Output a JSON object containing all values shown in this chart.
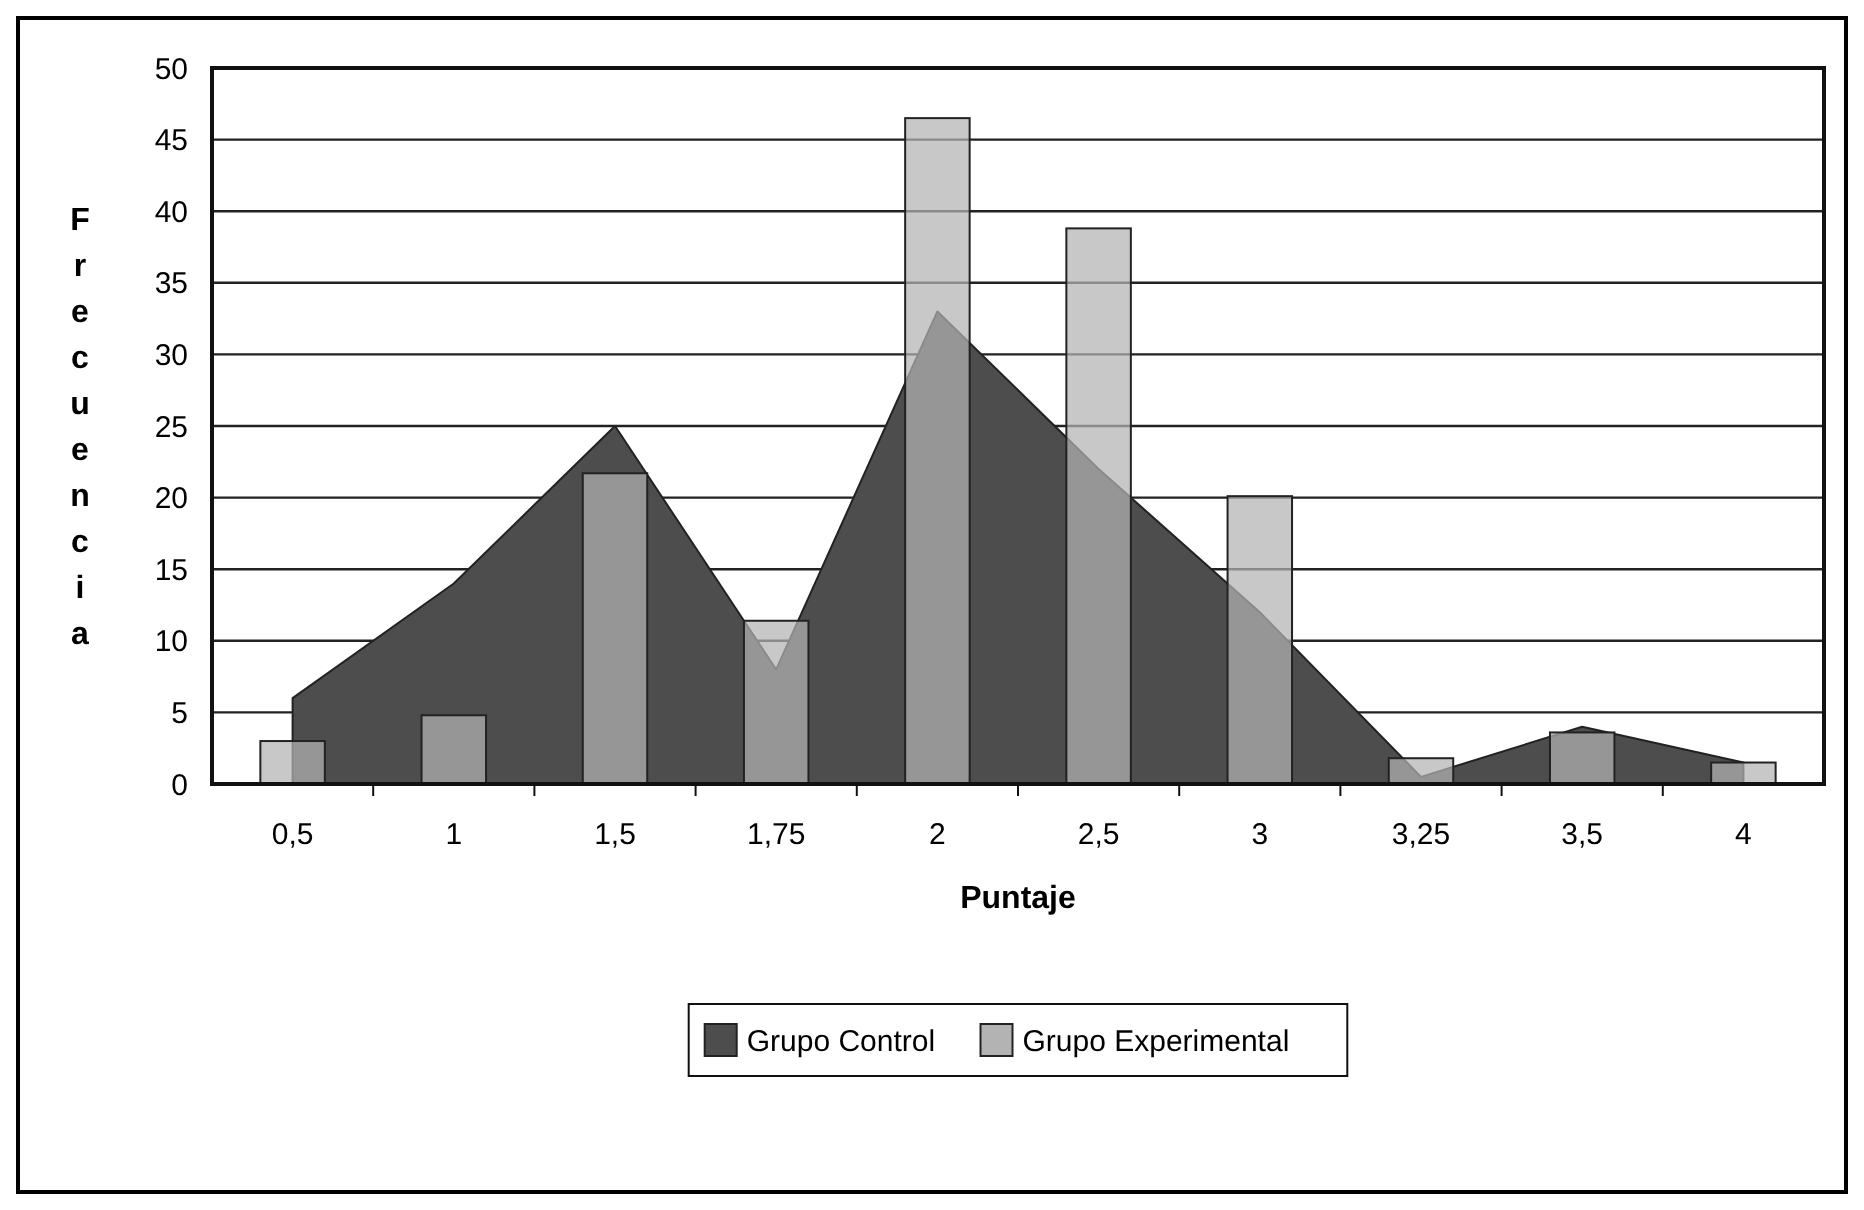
{
  "chart_data": {
    "type": "bar",
    "xlabel": "Puntaje",
    "ylabel": "Frecuencia",
    "categories": [
      "0,5",
      "1",
      "1,5",
      "1,75",
      "2",
      "2,5",
      "3",
      "3,25",
      "3,5",
      "4"
    ],
    "series": [
      {
        "name": "Grupo Control",
        "type": "area",
        "color": "#4d4d4d",
        "values": [
          6,
          14,
          25,
          8,
          33,
          22,
          12,
          0.5,
          4,
          1.5
        ]
      },
      {
        "name": "Grupo Experimental",
        "color": "#b3b3b3",
        "values": [
          3,
          4.8,
          21.7,
          11.4,
          46.5,
          38.8,
          20.1,
          1.8,
          3.6,
          1.5
        ]
      }
    ],
    "ylim": [
      0,
      50
    ],
    "yticks": [
      0,
      5,
      10,
      15,
      20,
      25,
      30,
      35,
      40,
      45,
      50
    ],
    "grid": "y",
    "legend": "bottom"
  }
}
